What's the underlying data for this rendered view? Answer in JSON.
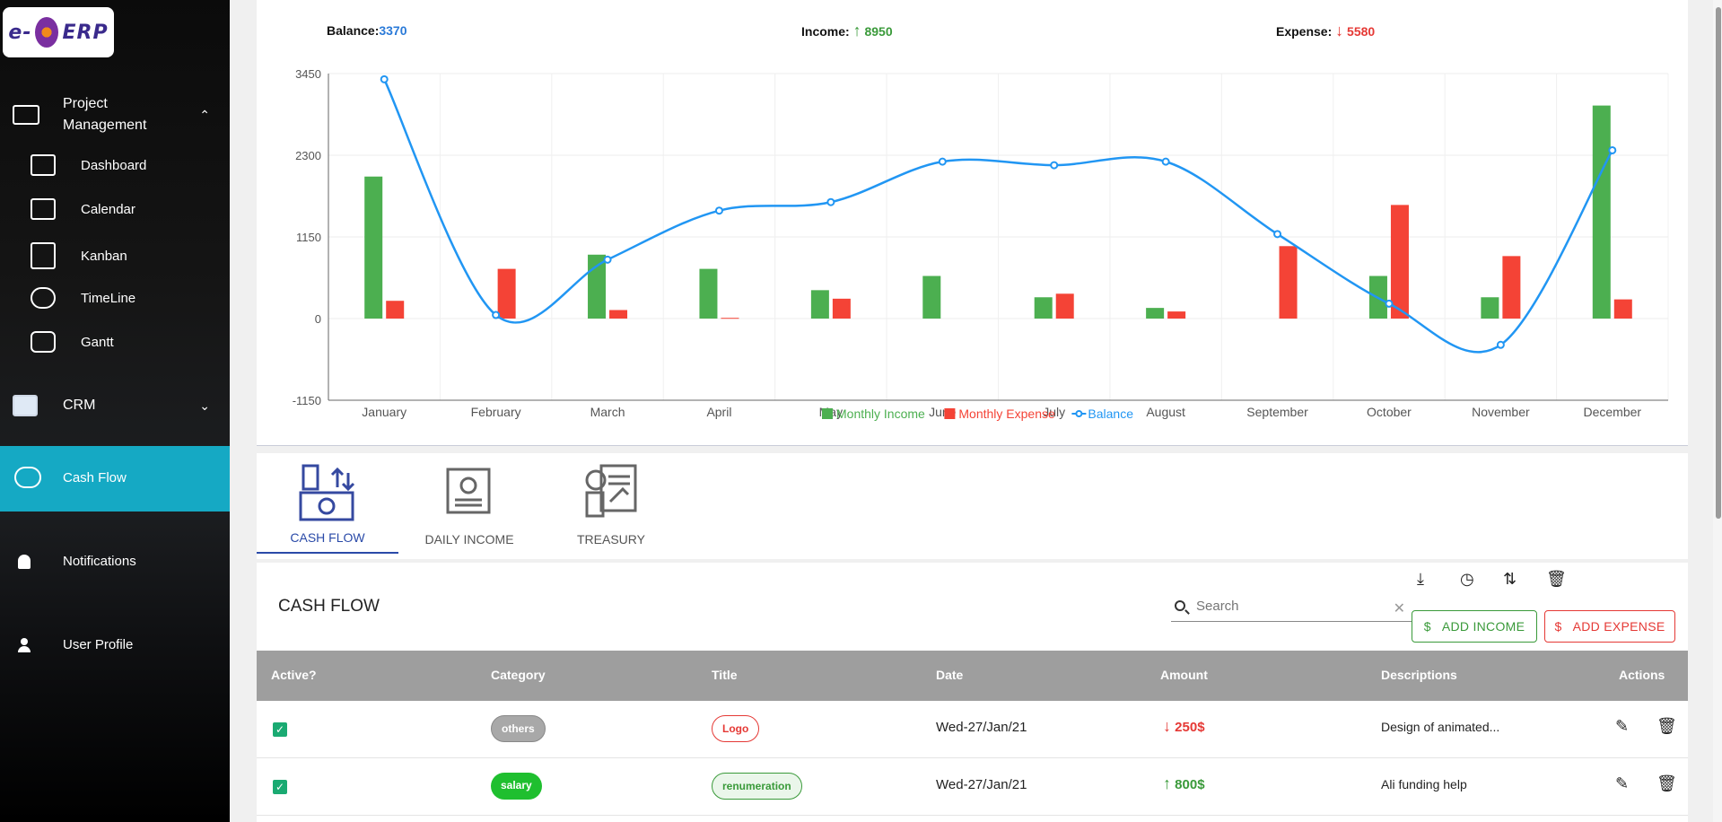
{
  "app": {
    "logo_text_left": "e-",
    "logo_text_right": "ERP"
  },
  "sidebar": {
    "groups": [
      {
        "label": "Project Management",
        "icon": "project-icon",
        "expanded": true
      },
      {
        "label": "CRM",
        "icon": "crm-icon",
        "expanded": false
      }
    ],
    "project_items": [
      {
        "label": "Dashboard",
        "icon": "dashboard-icon"
      },
      {
        "label": "Calendar",
        "icon": "calendar-icon"
      },
      {
        "label": "Kanban",
        "icon": "kanban-icon"
      },
      {
        "label": "TimeLine",
        "icon": "timeline-icon"
      },
      {
        "label": "Gantt",
        "icon": "gantt-icon"
      }
    ],
    "cash_flow": "Cash Flow",
    "notifications": "Notifications",
    "user_profile": "User Profile",
    "colors": {
      "active": "#15a9c4"
    }
  },
  "summary": {
    "balance_label": "Balance:",
    "balance_value": "3370",
    "income_label": "Income:",
    "income_value": "8950",
    "expense_label": "Expense:",
    "expense_value": "5580"
  },
  "chart_data": {
    "type": "bar",
    "categories": [
      "January",
      "February",
      "March",
      "April",
      "May",
      "June",
      "July",
      "August",
      "September",
      "October",
      "November",
      "December"
    ],
    "series": [
      {
        "name": "Monthly Income",
        "type": "bar",
        "color": "#4caf50",
        "values": [
          2000,
          0,
          900,
          700,
          400,
          600,
          300,
          150,
          0,
          600,
          300,
          3000
        ]
      },
      {
        "name": "Monthly Expense",
        "type": "bar",
        "color": "#f44336",
        "values": [
          250,
          700,
          120,
          10,
          280,
          0,
          350,
          100,
          1020,
          1600,
          880,
          270
        ]
      },
      {
        "name": "Balance",
        "type": "line",
        "color": "#2196f3",
        "values": [
          3370,
          50,
          830,
          1520,
          1640,
          2210,
          2160,
          2210,
          1190,
          210,
          -370,
          2370
        ]
      }
    ],
    "yticks": [
      "3450",
      "2300",
      "1150",
      "0",
      "-1150"
    ],
    "ylim": [
      -1150,
      3450
    ],
    "grid": true,
    "legend": "bottom"
  },
  "tabs": [
    {
      "label": "CASH FLOW",
      "icon": "cash-flow-icon",
      "active": true
    },
    {
      "label": "DAILY INCOME",
      "icon": "daily-income-icon",
      "active": false
    },
    {
      "label": "TREASURY",
      "icon": "treasury-icon",
      "active": false
    }
  ],
  "table": {
    "title": "CASH FLOW",
    "search_placeholder": "Search",
    "add_income": "ADD INCOME",
    "add_expense": "ADD EXPENSE",
    "tools": [
      "download-icon",
      "history-icon",
      "sort-icon",
      "delete-all-icon"
    ],
    "columns": [
      "Active?",
      "Category",
      "Title",
      "Date",
      "Amount",
      "Descriptions",
      "Actions"
    ],
    "rows": [
      {
        "active": true,
        "category": "others",
        "category_style": "gray",
        "title": "Logo",
        "title_style": "red-o",
        "date": "Wed-27/Jan/21",
        "amount": "250$",
        "direction": "down",
        "description": "Design of animated..."
      },
      {
        "active": true,
        "category": "salary",
        "category_style": "green",
        "title": "renumeration",
        "title_style": "green-o",
        "date": "Wed-27/Jan/21",
        "amount": "800$",
        "direction": "up",
        "description": "Ali funding help"
      }
    ]
  }
}
